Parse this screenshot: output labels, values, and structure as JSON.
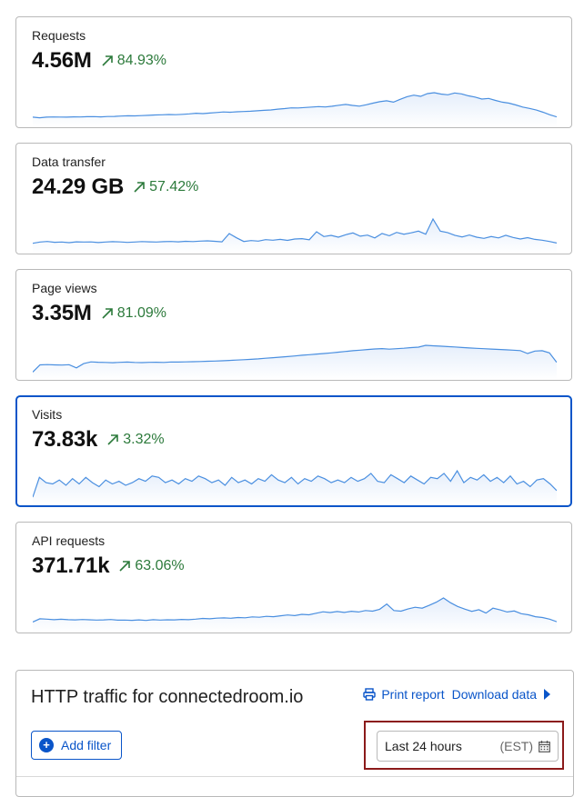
{
  "metrics": [
    {
      "label": "Requests",
      "value": "4.56M",
      "change": "84.93%",
      "spark": [
        4,
        3.5,
        4,
        4.2,
        4.1,
        4,
        4.3,
        4.2,
        4.4,
        4.5,
        4.3,
        4.6,
        4.7,
        5,
        5.2,
        5.1,
        5.4,
        5.6,
        5.9,
        6.1,
        6.3,
        6.2,
        6.5,
        6.9,
        7.4,
        7.1,
        7.6,
        8.1,
        8.5,
        8.3,
        8.7,
        8.9,
        9.2,
        9.6,
        10,
        10.3,
        11,
        11.5,
        12.1,
        12,
        12.4,
        12.8,
        13.2,
        12.9,
        13.5,
        14.4,
        15.1,
        14.2,
        13.6,
        14.8,
        16.2,
        17.5,
        18.3,
        17.1,
        19.5,
        21.8,
        23.2,
        22.1,
        24.5,
        25.3,
        24.1,
        23.5,
        25.1,
        24.3,
        22.6,
        21.5,
        19.8,
        20.3,
        18.6,
        17.1,
        16.2,
        14.6,
        12.8,
        11.6,
        10.2,
        8.3,
        6.1,
        4.3
      ]
    },
    {
      "label": "Data transfer",
      "value": "24.29 GB",
      "change": "57.42%",
      "spark": [
        4,
        5,
        5.5,
        4.8,
        5,
        4.5,
        5.2,
        5,
        5.1,
        4.6,
        5,
        5.3,
        5.1,
        4.7,
        5,
        5.4,
        5.2,
        5,
        5.3,
        5.5,
        5.2,
        5.6,
        5.4,
        5.8,
        6,
        5.6,
        5.2,
        12,
        8.5,
        5.5,
        6.2,
        5.8,
        7,
        6.5,
        7.2,
        6.4,
        7.5,
        7.8,
        6.9,
        13.5,
        9.5,
        10.5,
        9,
        11,
        12.5,
        9.8,
        10.7,
        8.4,
        12.1,
        10.2,
        13,
        11.5,
        12.6,
        14,
        11.5,
        24,
        14,
        12.8,
        10.6,
        9.2,
        10.8,
        9,
        8,
        9.5,
        8.4,
        10.6,
        8.8,
        7.5,
        8.6,
        7.2,
        6.5,
        5.5,
        4.2
      ]
    },
    {
      "label": "Page views",
      "value": "3.35M",
      "change": "81.09%",
      "spark": [
        2,
        8,
        8.2,
        8,
        7.8,
        8.1,
        5.5,
        9,
        10.5,
        10.2,
        10,
        9.8,
        10.1,
        10.3,
        10,
        9.9,
        10.1,
        10.2,
        10,
        10.4,
        10.3,
        10.5,
        10.6,
        10.8,
        11,
        11.2,
        11.4,
        11.7,
        12,
        12.3,
        12.6,
        13,
        13.5,
        14,
        14.4,
        14.9,
        15.4,
        16,
        16.5,
        17,
        17.5,
        18,
        18.6,
        19.2,
        19.8,
        20.3,
        20.8,
        21.3,
        21.6,
        21.1,
        21.5,
        21.9,
        22.4,
        22.8,
        24.3,
        23.9,
        23.6,
        23.2,
        22.9,
        22.5,
        22.1,
        21.8,
        21.5,
        21.2,
        20.9,
        20.6,
        20.3,
        19.9,
        17.5,
        19.5,
        19.8,
        18,
        10
      ]
    },
    {
      "label": "Visits",
      "value": "73.83k",
      "change": "3.32%",
      "spark": [
        2,
        17,
        13,
        12,
        15,
        11,
        16,
        12,
        17,
        13,
        10,
        15,
        12,
        14,
        11,
        13,
        16,
        14,
        18,
        17,
        13,
        15,
        12,
        16,
        14,
        18,
        16,
        13,
        15,
        11,
        17,
        13,
        15,
        12,
        16,
        14,
        19,
        15,
        13,
        17,
        12,
        16,
        14,
        18,
        16,
        13,
        15,
        13,
        17,
        14,
        16,
        20,
        14,
        13,
        19,
        16,
        13,
        18,
        15,
        12,
        17,
        16,
        20,
        14,
        22,
        13,
        17,
        15,
        19,
        14,
        17,
        13,
        18,
        12,
        14,
        10,
        15,
        16,
        12,
        7
      ]
    },
    {
      "label": "API requests",
      "value": "371.71k",
      "change": "63.06%",
      "spark": [
        4,
        6.5,
        6.2,
        5.8,
        6.1,
        5.8,
        5.6,
        5.9,
        5.7,
        5.5,
        5.6,
        5.9,
        5.4,
        5.5,
        5.3,
        5.6,
        5.2,
        5.8,
        5.5,
        5.7,
        5.6,
        6,
        5.8,
        6.2,
        6.8,
        6.5,
        7,
        7.2,
        6.9,
        7.5,
        7.3,
        8,
        7.7,
        8.4,
        8.1,
        8.8,
        9.5,
        9,
        10,
        9.6,
        10.8,
        12,
        11.4,
        12.2,
        11.5,
        12.4,
        11.8,
        13,
        12.5,
        14,
        18,
        13,
        12.5,
        14.2,
        15.5,
        14.8,
        17,
        19.5,
        22.8,
        19.1,
        16.2,
        14.1,
        12.3,
        13.6,
        11,
        14.8,
        13.5,
        11.8,
        12.6,
        10.5,
        9.6,
        8.1,
        7.5,
        6.2,
        4.2
      ]
    }
  ],
  "traffic": {
    "title": "HTTP traffic for connectedroom.io",
    "print_label": "Print report",
    "download_label": "Download data",
    "add_filter_label": "Add filter",
    "date_range": "Last 24 hours",
    "timezone": "(EST)"
  },
  "colors": {
    "accent": "#0a55c9",
    "positive": "#2c7a3b",
    "spark_line": "#4a8fe0",
    "spark_fill": "#e5eefb"
  }
}
